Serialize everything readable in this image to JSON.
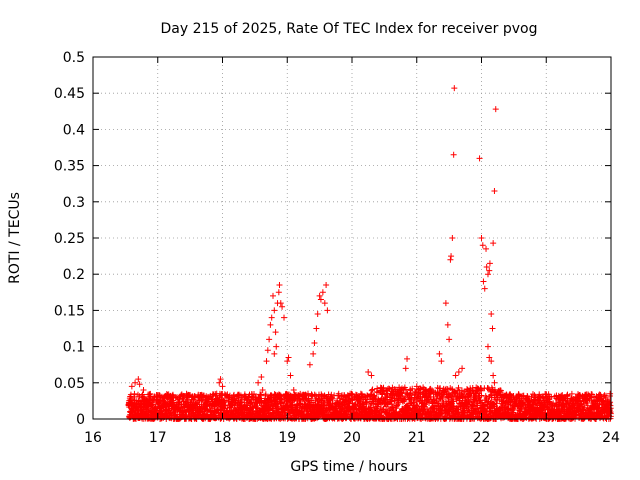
{
  "chart_data": {
    "type": "scatter",
    "title": "Day 215 of 2025, Rate Of TEC Index for receiver pvog",
    "xlabel": "GPS time / hours",
    "ylabel": "ROTI / TECUs",
    "xlim": [
      16,
      24
    ],
    "ylim": [
      0,
      0.5
    ],
    "x_ticks": [
      16,
      17,
      18,
      19,
      20,
      21,
      22,
      23,
      24
    ],
    "y_ticks": [
      0,
      0.05,
      0.1,
      0.15,
      0.2,
      0.25,
      0.3,
      0.35,
      0.4,
      0.45,
      0.5
    ],
    "y_tick_labels": [
      "0",
      "0.05",
      "0.1",
      "0.15",
      "0.2",
      "0.25",
      "0.3",
      "0.35",
      "0.4",
      "0.45",
      "0.5"
    ],
    "grid": true,
    "marker": "+",
    "series": [
      {
        "name": "ROTI",
        "color": "#ff0000",
        "baseline": {
          "x_start": 16.55,
          "x_end": 24.0,
          "y_min": 0.0,
          "y_max": 0.035
        },
        "points": [
          [
            16.6,
            0.045
          ],
          [
            16.65,
            0.05
          ],
          [
            16.7,
            0.055
          ],
          [
            16.72,
            0.048
          ],
          [
            16.78,
            0.04
          ],
          [
            17.5,
            0.033
          ],
          [
            17.95,
            0.05
          ],
          [
            17.97,
            0.055
          ],
          [
            18.0,
            0.045
          ],
          [
            18.55,
            0.05
          ],
          [
            18.6,
            0.058
          ],
          [
            18.62,
            0.04
          ],
          [
            18.68,
            0.08
          ],
          [
            18.7,
            0.095
          ],
          [
            18.72,
            0.11
          ],
          [
            18.74,
            0.13
          ],
          [
            18.76,
            0.14
          ],
          [
            18.78,
            0.17
          ],
          [
            18.8,
            0.15
          ],
          [
            18.82,
            0.12
          ],
          [
            18.85,
            0.16
          ],
          [
            18.87,
            0.175
          ],
          [
            18.88,
            0.185
          ],
          [
            18.9,
            0.16
          ],
          [
            18.92,
            0.155
          ],
          [
            18.95,
            0.14
          ],
          [
            18.8,
            0.09
          ],
          [
            18.83,
            0.1
          ],
          [
            19.0,
            0.08
          ],
          [
            19.02,
            0.085
          ],
          [
            19.05,
            0.06
          ],
          [
            19.1,
            0.04
          ],
          [
            19.35,
            0.075
          ],
          [
            19.4,
            0.09
          ],
          [
            19.42,
            0.105
          ],
          [
            19.45,
            0.125
          ],
          [
            19.47,
            0.145
          ],
          [
            19.5,
            0.17
          ],
          [
            19.52,
            0.165
          ],
          [
            19.55,
            0.175
          ],
          [
            19.58,
            0.16
          ],
          [
            19.6,
            0.185
          ],
          [
            19.62,
            0.15
          ],
          [
            20.25,
            0.065
          ],
          [
            20.3,
            0.06
          ],
          [
            20.85,
            0.083
          ],
          [
            20.83,
            0.07
          ],
          [
            21.0,
            0.045
          ],
          [
            21.35,
            0.09
          ],
          [
            21.38,
            0.08
          ],
          [
            21.45,
            0.16
          ],
          [
            21.48,
            0.13
          ],
          [
            21.5,
            0.11
          ],
          [
            21.52,
            0.22
          ],
          [
            21.53,
            0.225
          ],
          [
            21.55,
            0.25
          ],
          [
            21.57,
            0.365
          ],
          [
            21.58,
            0.457
          ],
          [
            21.6,
            0.06
          ],
          [
            21.65,
            0.065
          ],
          [
            21.7,
            0.07
          ],
          [
            21.97,
            0.36
          ],
          [
            22.0,
            0.25
          ],
          [
            22.02,
            0.24
          ],
          [
            22.03,
            0.19
          ],
          [
            22.05,
            0.18
          ],
          [
            22.07,
            0.235
          ],
          [
            22.08,
            0.21
          ],
          [
            22.1,
            0.2
          ],
          [
            22.12,
            0.205
          ],
          [
            22.13,
            0.215
          ],
          [
            22.15,
            0.145
          ],
          [
            22.17,
            0.125
          ],
          [
            22.18,
            0.243
          ],
          [
            22.2,
            0.315
          ],
          [
            22.22,
            0.428
          ],
          [
            22.1,
            0.1
          ],
          [
            22.12,
            0.085
          ],
          [
            22.15,
            0.08
          ],
          [
            22.18,
            0.06
          ],
          [
            22.2,
            0.05
          ]
        ]
      }
    ]
  }
}
